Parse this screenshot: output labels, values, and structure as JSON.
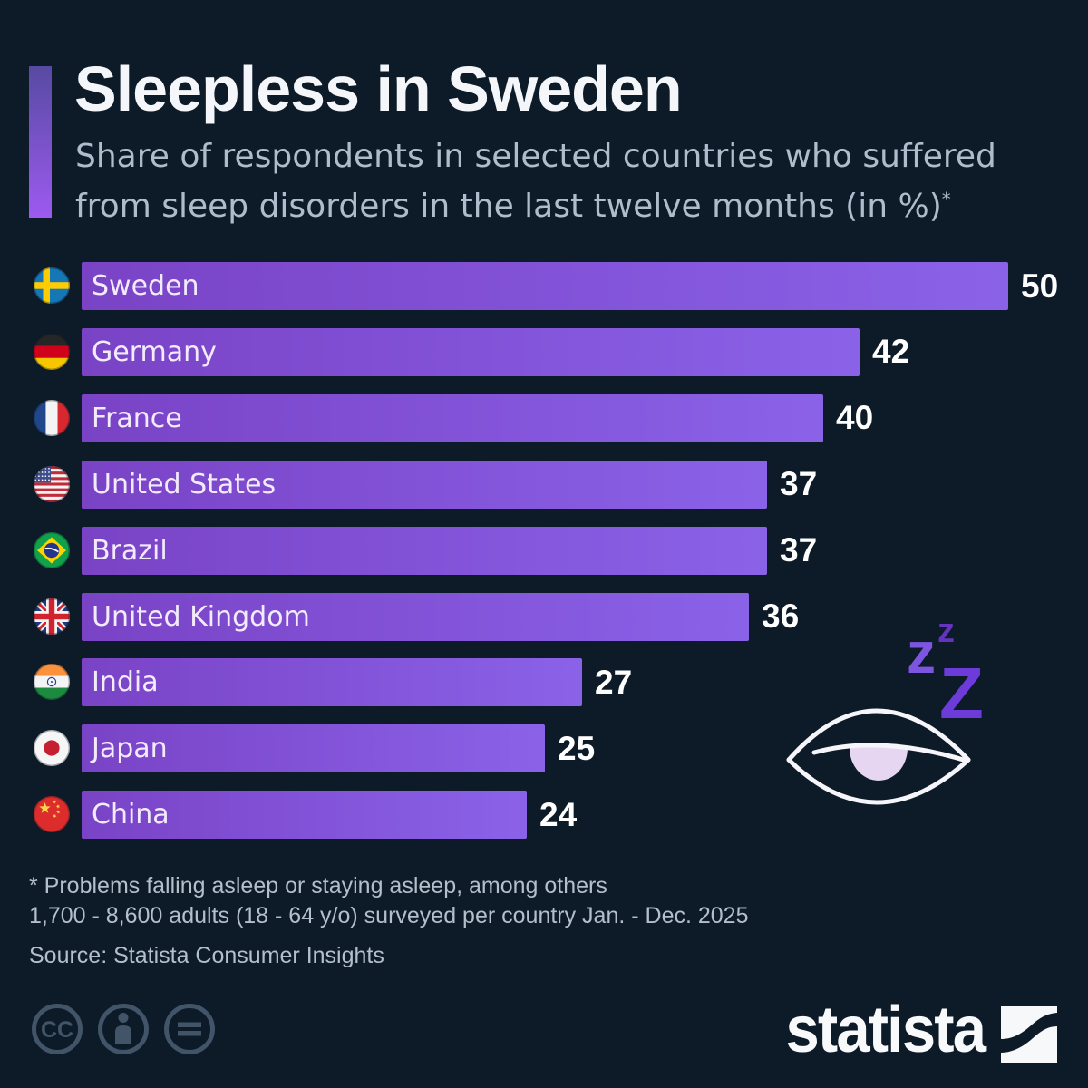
{
  "header": {
    "title": "Sleepless in Sweden",
    "subtitle_line1": "Share of respondents in selected countries who suffered",
    "subtitle_line2": "from sleep disorders in the last twelve months (in %)",
    "subtitle_asterisk": "*"
  },
  "chart_data": {
    "type": "bar",
    "orientation": "horizontal",
    "title": "Sleepless in Sweden",
    "categories": [
      "Sweden",
      "Germany",
      "France",
      "United States",
      "Brazil",
      "United Kingdom",
      "India",
      "Japan",
      "China"
    ],
    "values": [
      50,
      42,
      40,
      37,
      37,
      36,
      27,
      25,
      24
    ],
    "xlim": [
      0,
      50
    ],
    "value_labels_shown": true,
    "bar_gradient": [
      "#7a43c6",
      "#8a62e8"
    ],
    "rows": [
      {
        "country": "Sweden",
        "value": 50,
        "flag": "se"
      },
      {
        "country": "Germany",
        "value": 42,
        "flag": "de"
      },
      {
        "country": "France",
        "value": 40,
        "flag": "fr"
      },
      {
        "country": "United States",
        "value": 37,
        "flag": "us"
      },
      {
        "country": "Brazil",
        "value": 37,
        "flag": "br"
      },
      {
        "country": "United Kingdom",
        "value": 36,
        "flag": "gb"
      },
      {
        "country": "India",
        "value": 27,
        "flag": "in"
      },
      {
        "country": "Japan",
        "value": 25,
        "flag": "jp"
      },
      {
        "country": "China",
        "value": 24,
        "flag": "cn"
      }
    ]
  },
  "illustration": {
    "z_small": "z",
    "z_medium": "z",
    "z_large": "Z"
  },
  "footer": {
    "note_line1": "* Problems falling asleep or staying asleep, among others",
    "note_line2": "1,700 - 8,600 adults (18 - 64 y/o) surveyed per country Jan. - Dec. 2025",
    "source": "Source: Statista Consumer Insights",
    "cc_label": "CC",
    "logo_text": "statista"
  }
}
